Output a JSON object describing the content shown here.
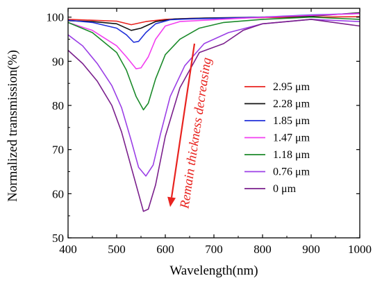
{
  "chart_data": {
    "type": "line",
    "xlabel": "Wavelength(nm)",
    "ylabel": "Normalized transmission(%)",
    "xlim": [
      400,
      1000
    ],
    "ylim": [
      50,
      102
    ],
    "xticks": [
      400,
      500,
      600,
      700,
      800,
      900,
      1000
    ],
    "yticks": [
      50,
      60,
      70,
      80,
      90,
      100
    ],
    "grid": false,
    "legend_position": "right",
    "annotation": {
      "text": "Remain thickness decreasing",
      "color": "#e8231f",
      "arrow_from": [
        660,
        94
      ],
      "arrow_to": [
        610,
        57
      ]
    },
    "series": [
      {
        "name": "2.95 μm",
        "color": "#e8231f",
        "x": [
          400,
          450,
          500,
          530,
          560,
          600,
          650,
          700,
          800,
          900,
          1000
        ],
        "y": [
          99.5,
          99.3,
          99.1,
          98.3,
          99.0,
          99.5,
          99.7,
          99.8,
          99.9,
          100.0,
          100.1
        ]
      },
      {
        "name": "2.28 μm",
        "color": "#111111",
        "x": [
          400,
          450,
          500,
          530,
          550,
          580,
          620,
          680,
          800,
          900,
          1000
        ],
        "y": [
          99.2,
          99.0,
          98.5,
          97.0,
          97.5,
          99.0,
          99.6,
          99.8,
          100.0,
          100.2,
          101.0
        ]
      },
      {
        "name": "1.85 μm",
        "color": "#1f2fd9",
        "x": [
          400,
          450,
          500,
          520,
          535,
          545,
          560,
          580,
          610,
          650,
          700,
          800,
          900,
          1000
        ],
        "y": [
          99.3,
          98.8,
          97.5,
          96.0,
          94.3,
          94.5,
          96.5,
          98.5,
          99.4,
          99.6,
          99.7,
          100.0,
          100.5,
          100.8
        ]
      },
      {
        "name": "1.47 μm",
        "color": "#f23ff0",
        "x": [
          400,
          450,
          500,
          520,
          540,
          550,
          565,
          580,
          600,
          630,
          680,
          750,
          850,
          1000
        ],
        "y": [
          98.8,
          97.0,
          93.5,
          91.0,
          88.3,
          88.5,
          91.0,
          95.0,
          98.0,
          99.0,
          99.3,
          99.7,
          100.2,
          100.8
        ]
      },
      {
        "name": "1.18 μm",
        "color": "#1b8a2a",
        "x": [
          400,
          450,
          500,
          520,
          540,
          555,
          565,
          580,
          600,
          630,
          670,
          720,
          800,
          900,
          1000
        ],
        "y": [
          98.8,
          96.5,
          92.0,
          88.0,
          82.0,
          79.0,
          80.5,
          86.0,
          91.5,
          95.0,
          97.5,
          98.8,
          99.5,
          100.0,
          99.5
        ]
      },
      {
        "name": "0.76 μm",
        "color": "#9b3fe6",
        "x": [
          400,
          430,
          460,
          490,
          510,
          530,
          545,
          560,
          575,
          590,
          610,
          640,
          680,
          730,
          800,
          900,
          1000
        ],
        "y": [
          96.0,
          93.5,
          89.5,
          84.5,
          79.5,
          72.0,
          66.0,
          64.0,
          66.5,
          73.5,
          82.0,
          89.0,
          94.0,
          96.5,
          98.5,
          99.5,
          99.0
        ]
      },
      {
        "name": "0 μm",
        "color": "#7a1f8c",
        "x": [
          400,
          430,
          460,
          490,
          510,
          530,
          545,
          555,
          565,
          580,
          600,
          630,
          670,
          720,
          760,
          800,
          900,
          1000
        ],
        "y": [
          92.5,
          89.5,
          85.5,
          80.0,
          74.0,
          66.0,
          60.0,
          56.0,
          56.5,
          62.0,
          73.0,
          84.0,
          92.0,
          94.0,
          97.0,
          98.5,
          99.5,
          98.0
        ]
      }
    ]
  }
}
